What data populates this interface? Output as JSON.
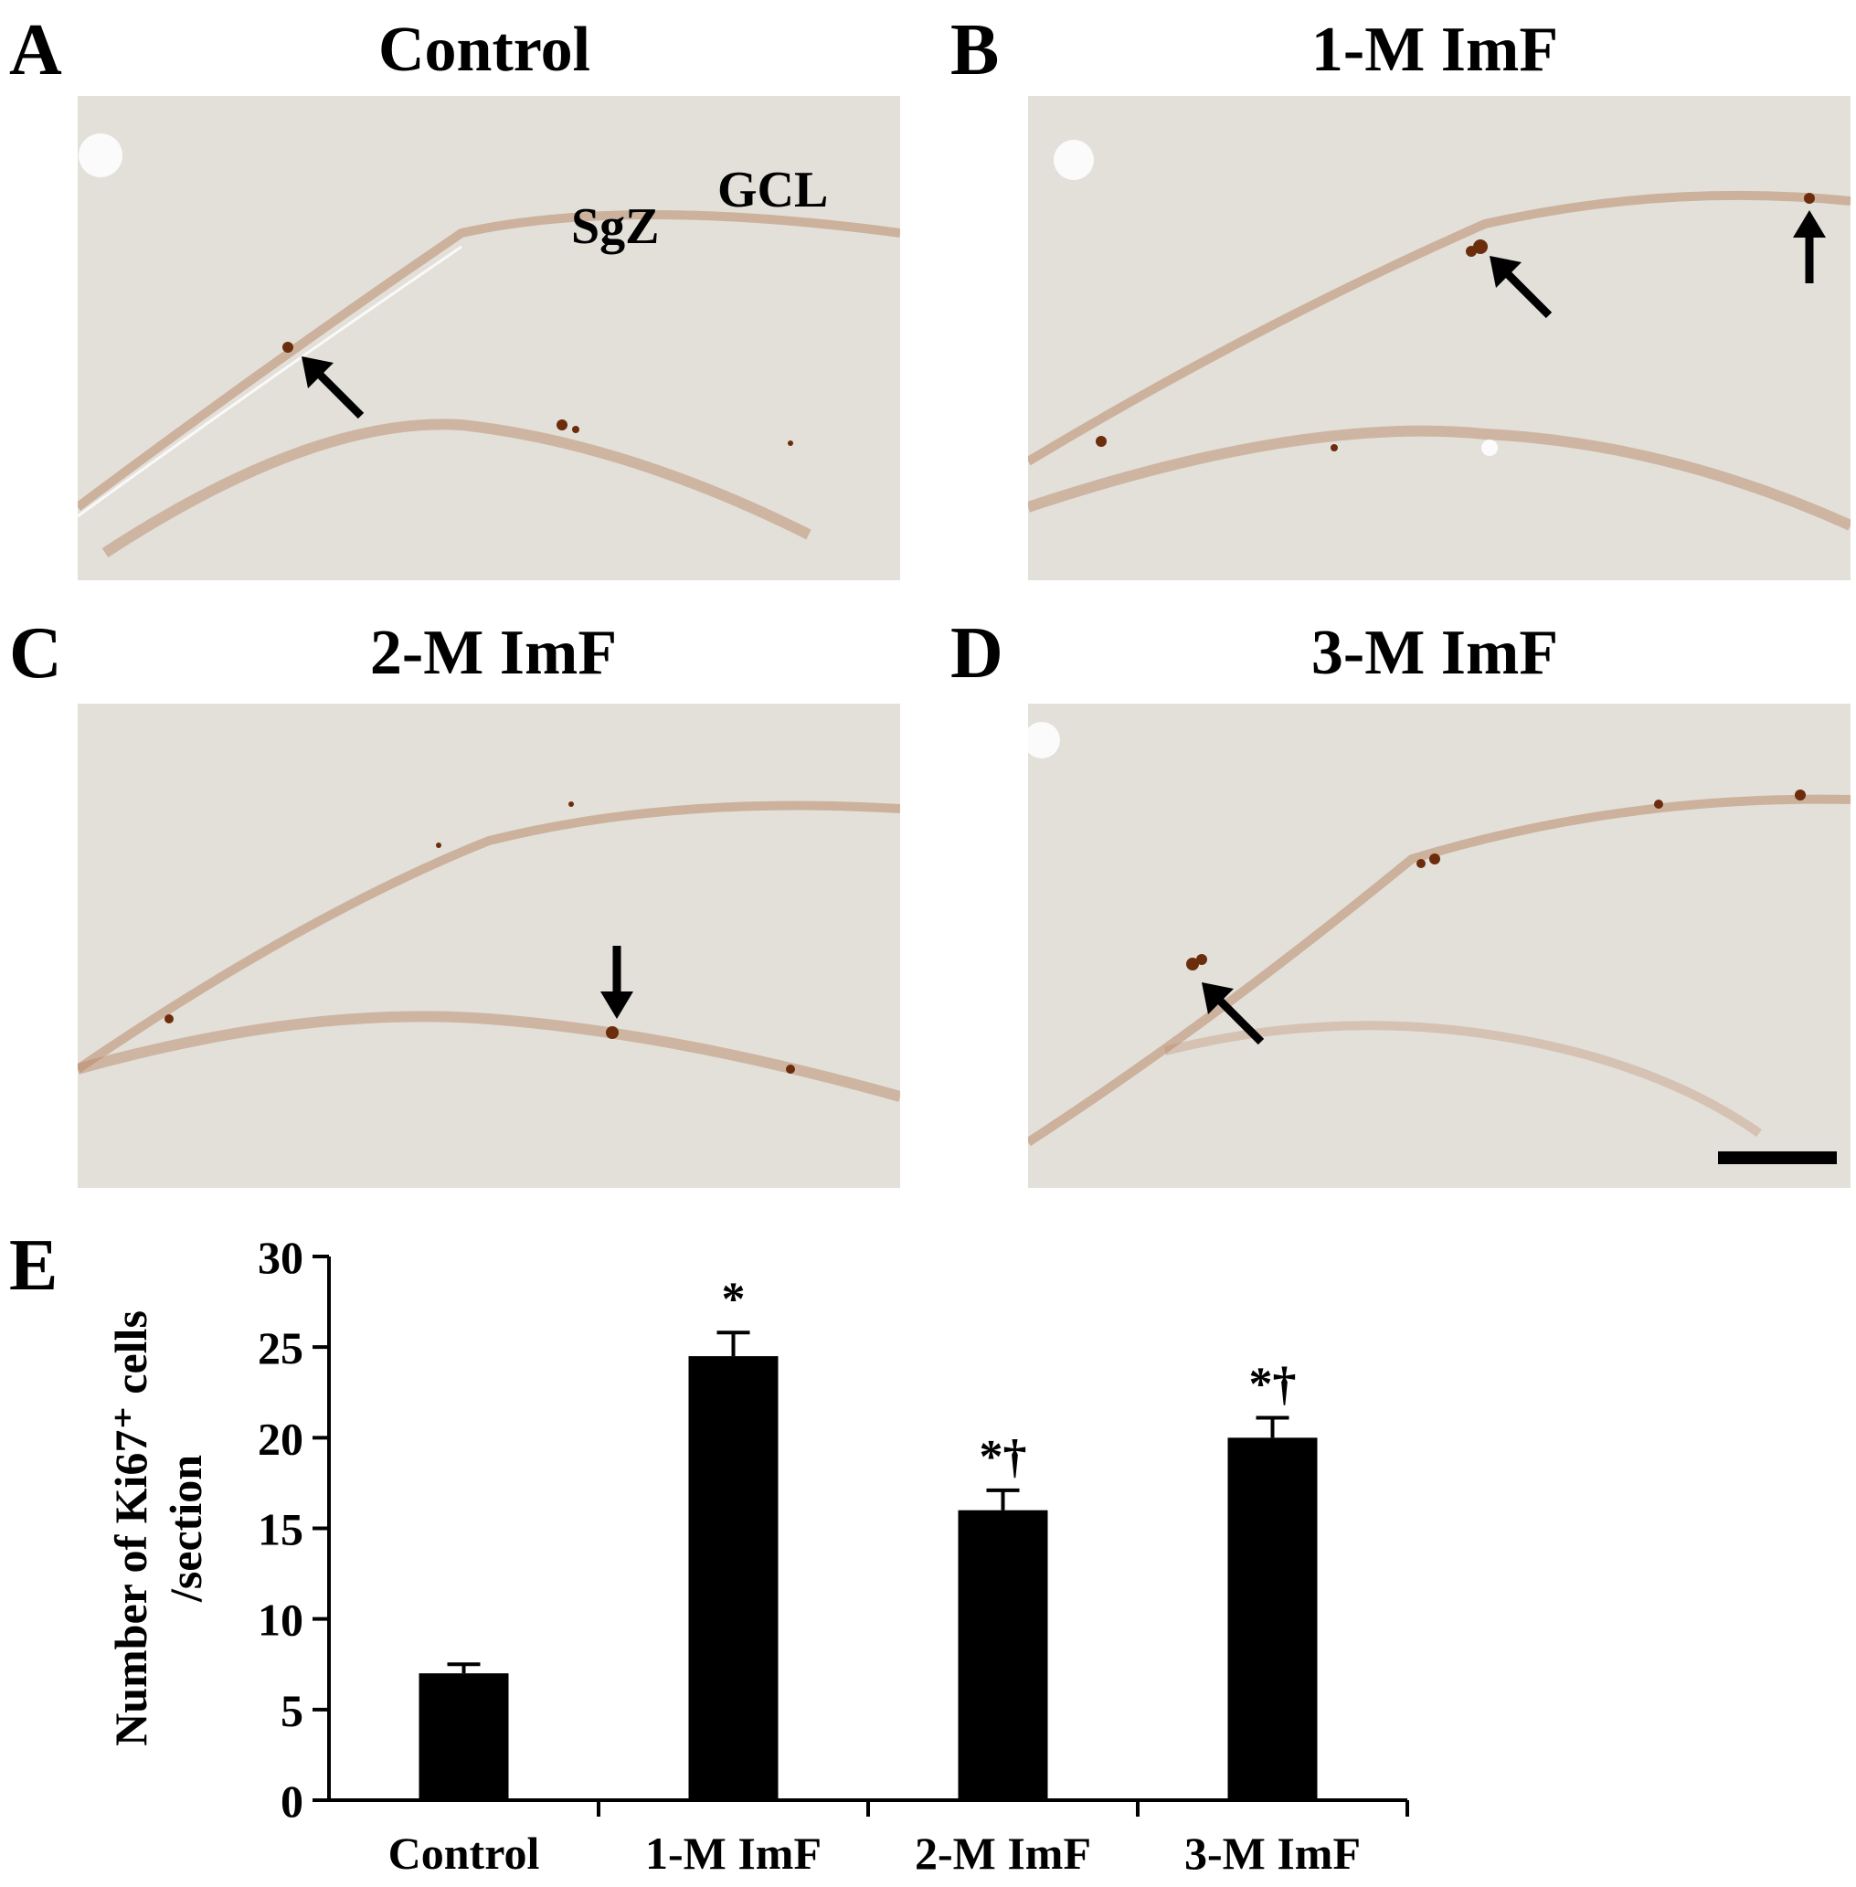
{
  "panels": [
    {
      "letter": "A",
      "title": "Control"
    },
    {
      "letter": "B",
      "title": "1-M ImF"
    },
    {
      "letter": "C",
      "title": "2-M ImF"
    },
    {
      "letter": "D",
      "title": "3-M ImF"
    },
    {
      "letter": "E",
      "title": ""
    }
  ],
  "annotations": {
    "sgz": "SgZ",
    "gcl": "GCL"
  },
  "colors": {
    "tissue": "#e3e0da",
    "stain": "#a0522d",
    "cell": "#6b2d0c",
    "bar": "#000000"
  },
  "chart_data": {
    "type": "bar",
    "categories": [
      "Control",
      "1-M ImF",
      "2-M ImF",
      "3-M ImF"
    ],
    "values": [
      7,
      24.5,
      16,
      20
    ],
    "errors": [
      0.5,
      1.3,
      1.1,
      1.1
    ],
    "significance": [
      "",
      "*",
      "*†",
      "*†"
    ],
    "ylabel_line1": "Number of Ki67⁺ cells",
    "ylabel_line2": "/section",
    "ylim": [
      0,
      30
    ],
    "yticks": [
      0,
      5,
      10,
      15,
      20,
      25,
      30
    ],
    "grid": false,
    "legend": "none"
  }
}
